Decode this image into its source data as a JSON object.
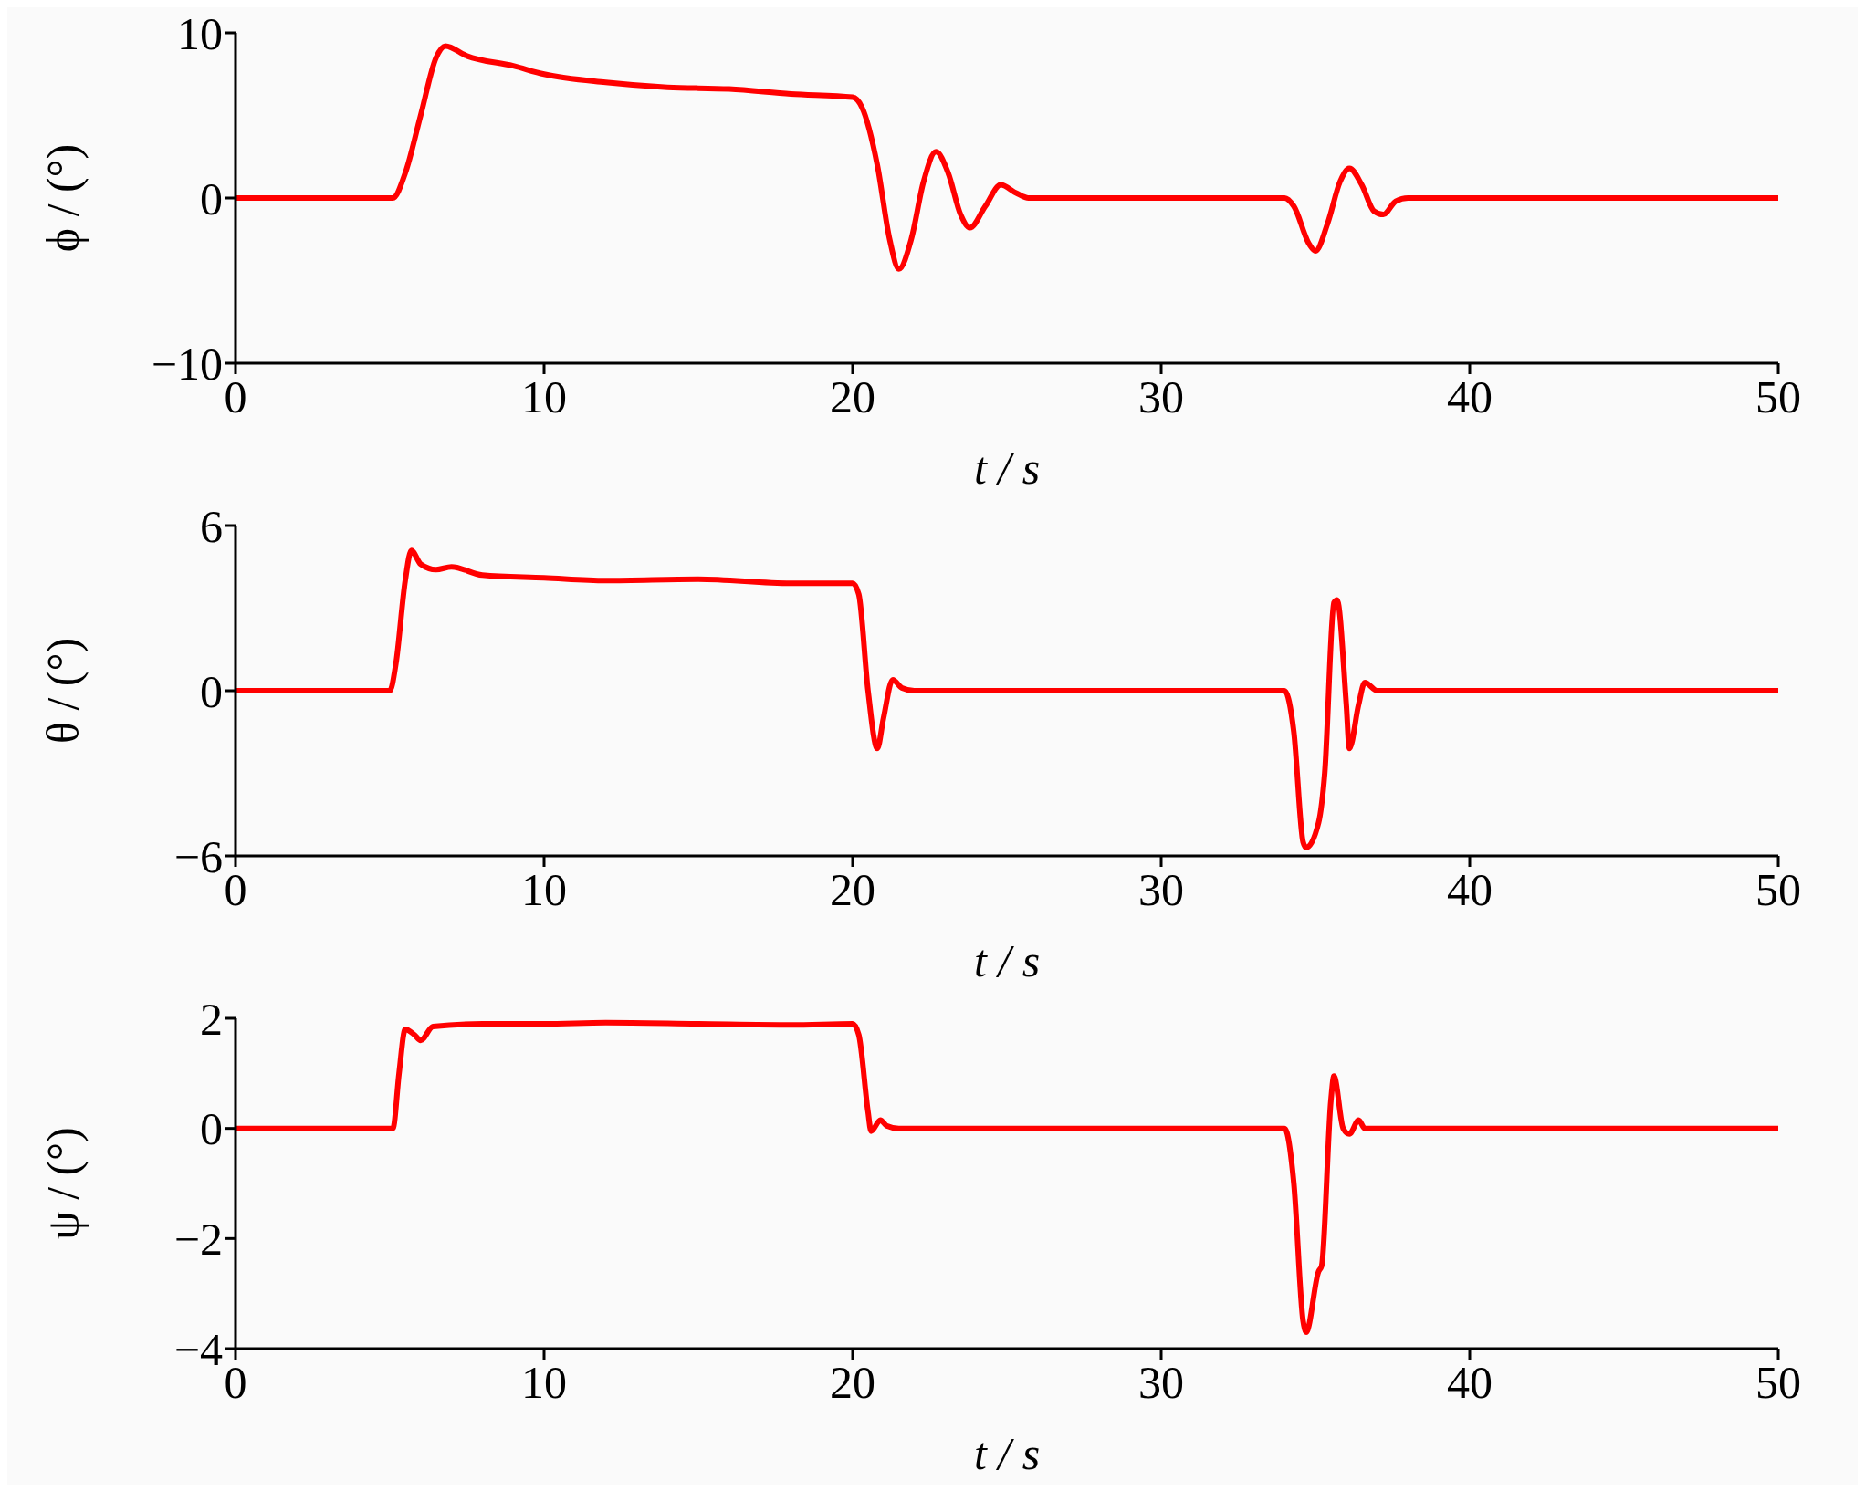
{
  "chart_data": [
    {
      "type": "line",
      "xlabel": "t / s",
      "ylabel": "ϕ / (°)",
      "xlim": [
        0,
        50
      ],
      "xticks": [
        0,
        10,
        20,
        30,
        40,
        50
      ],
      "ylim": [
        -10,
        10
      ],
      "yticks": [
        -10,
        0,
        10
      ],
      "x": [
        0,
        5.1,
        5.5,
        6.0,
        6.5,
        6.8,
        7.5,
        9,
        10,
        12,
        14,
        16,
        18,
        20,
        20.3,
        20.8,
        21.2,
        21.5,
        21.9,
        22.3,
        22.7,
        23.1,
        23.5,
        23.8,
        24.3,
        24.8,
        25.3,
        25.7,
        34,
        34.3,
        34.8,
        35.0,
        35.4,
        35.8,
        36.1,
        36.5,
        36.9,
        37.2,
        37.6,
        38,
        50
      ],
      "series": [
        {
          "color": "#ff0000",
          "values": [
            0,
            0,
            1.5,
            5,
            8.5,
            9.2,
            8.6,
            8.0,
            7.5,
            7.0,
            6.7,
            6.6,
            6.3,
            6.1,
            5.5,
            2,
            -2.5,
            -4.3,
            -2.5,
            1,
            2.8,
            1.5,
            -1,
            -1.8,
            -0.5,
            0.8,
            0.3,
            0,
            0,
            -0.5,
            -2.8,
            -3.2,
            -1.5,
            1,
            1.8,
            0.8,
            -0.8,
            -1.0,
            -0.2,
            0,
            0
          ]
        }
      ]
    },
    {
      "type": "line",
      "xlabel": "t / s",
      "ylabel": "θ / (°)",
      "xlim": [
        0,
        50
      ],
      "xticks": [
        0,
        10,
        20,
        30,
        40,
        50
      ],
      "ylim": [
        -6,
        6
      ],
      "yticks": [
        -6,
        0,
        6
      ],
      "x": [
        0,
        5.0,
        5.2,
        5.5,
        5.7,
        6.0,
        6.5,
        7,
        8,
        10,
        12,
        15,
        18,
        20,
        20.2,
        20.5,
        20.8,
        21.0,
        21.3,
        21.6,
        22,
        34.0,
        34.3,
        34.6,
        34.7,
        35.1,
        35.3,
        35.6,
        35.7,
        36.0,
        36.1,
        36.4,
        36.6,
        37,
        50
      ],
      "series": [
        {
          "color": "#ff0000",
          "values": [
            0,
            0,
            1,
            4,
            5.1,
            4.6,
            4.4,
            4.5,
            4.2,
            4.1,
            4.0,
            4.05,
            3.9,
            3.9,
            3.5,
            0,
            -2.1,
            -1.0,
            0.4,
            0.1,
            0,
            0,
            -1.5,
            -5.5,
            -5.7,
            -4.8,
            -3,
            3.2,
            3.3,
            -0.5,
            -2.1,
            -0.5,
            0.3,
            0,
            0
          ]
        }
      ]
    },
    {
      "type": "line",
      "xlabel": "t / s",
      "ylabel": "ψ / (°)",
      "xlim": [
        0,
        50
      ],
      "xticks": [
        0,
        10,
        20,
        30,
        40,
        50
      ],
      "ylim": [
        -4,
        2
      ],
      "yticks": [
        -4,
        -2,
        0,
        2
      ],
      "x": [
        0,
        5.1,
        5.3,
        5.5,
        5.8,
        6.0,
        6.4,
        8,
        10,
        12,
        15,
        18,
        20,
        20.2,
        20.5,
        20.6,
        20.9,
        21.1,
        21.5,
        34,
        34.3,
        34.6,
        34.7,
        35.1,
        35.2,
        35.5,
        35.6,
        35.9,
        36.1,
        36.4,
        36.6,
        50
      ],
      "series": [
        {
          "color": "#ff0000",
          "values": [
            0,
            0,
            1,
            1.8,
            1.7,
            1.6,
            1.85,
            1.9,
            1.9,
            1.92,
            1.9,
            1.88,
            1.9,
            1.7,
            0.3,
            -0.05,
            0.15,
            0.05,
            0,
            0,
            -1,
            -3.5,
            -3.7,
            -2.6,
            -2.5,
            0.5,
            0.95,
            0,
            -0.1,
            0.15,
            0,
            0
          ]
        }
      ]
    }
  ]
}
